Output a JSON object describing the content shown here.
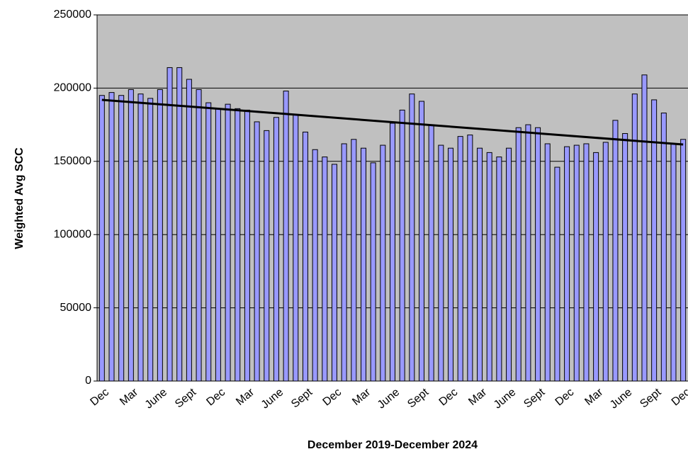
{
  "chart_data": {
    "type": "bar",
    "x_label": "December 2019-December 2024",
    "y_label": "Weighted Avg SCC",
    "categories": [
      "Dec",
      null,
      null,
      "Mar",
      null,
      null,
      "June",
      null,
      null,
      "Sept",
      null,
      null,
      "Dec",
      null,
      null,
      "Mar",
      null,
      null,
      "June",
      null,
      null,
      "Sept",
      null,
      null,
      "Dec",
      null,
      null,
      "Mar",
      null,
      null,
      "June",
      null,
      null,
      "Sept",
      null,
      null,
      "Dec",
      null,
      null,
      "Mar",
      null,
      null,
      "June",
      null,
      null,
      "Sept",
      null,
      null,
      "Dec",
      null,
      null,
      "Mar",
      null,
      null,
      "June",
      null,
      null,
      "Sept",
      null,
      null,
      "Dec"
    ],
    "values": [
      195000,
      197000,
      195000,
      199000,
      196000,
      193000,
      199000,
      214000,
      214000,
      206000,
      199000,
      190000,
      186000,
      189000,
      186000,
      185000,
      177000,
      171000,
      180000,
      198000,
      182000,
      170000,
      158000,
      153000,
      148000,
      162000,
      165000,
      159000,
      149000,
      161000,
      176000,
      185000,
      196000,
      191000,
      175000,
      161000,
      159000,
      167000,
      168000,
      159000,
      156000,
      153000,
      159000,
      173000,
      175000,
      173000,
      162000,
      146000,
      160000,
      161000,
      162000,
      156000,
      163000,
      178000,
      169000,
      196000,
      209000,
      192000,
      183000,
      162000,
      165000
    ],
    "color": "#9999ff",
    "trendline": {
      "values": [
        192000,
        161500
      ],
      "color": "#000000"
    },
    "ylim": [
      0,
      250000
    ],
    "yticks": [
      0,
      50000,
      100000,
      150000,
      200000,
      250000
    ],
    "grid": true
  }
}
